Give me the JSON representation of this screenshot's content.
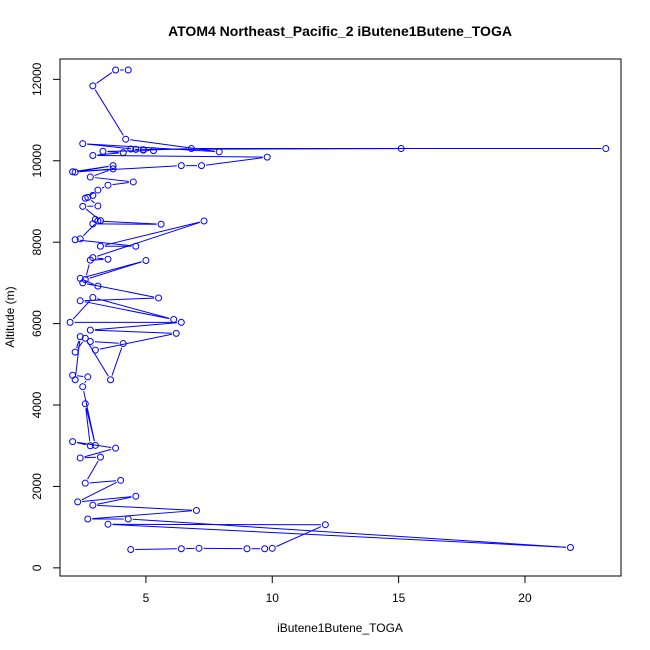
{
  "chart_data": {
    "type": "line",
    "title": "ATOM4 Northeast_Pacific_2 iButene1Butene_TOGA",
    "xlabel": "iButene1Butene_TOGA",
    "ylabel": "Altitude (m)",
    "xlim": [
      1.6,
      23.8
    ],
    "ylim": [
      -200,
      12500
    ],
    "xticks": [
      5,
      10,
      15,
      20
    ],
    "yticks": [
      0,
      2000,
      4000,
      6000,
      8000,
      10000,
      12000
    ],
    "grid": false,
    "markers": "open-circle",
    "colors": {
      "series": "#0000ff",
      "axes": "#000000"
    },
    "series": [
      {
        "values": [
          [
            4.4,
            450
          ],
          [
            6.4,
            470
          ],
          [
            7.1,
            480
          ],
          [
            9.0,
            470
          ],
          [
            9.7,
            470
          ],
          [
            10.0,
            480
          ],
          [
            12.1,
            1060
          ],
          [
            3.5,
            1070
          ],
          [
            21.8,
            500
          ],
          [
            4.3,
            1200
          ],
          [
            2.7,
            1200
          ],
          [
            7.0,
            1410
          ],
          [
            2.9,
            1540
          ],
          [
            4.6,
            1760
          ],
          [
            2.3,
            1620
          ],
          [
            4.0,
            2150
          ],
          [
            2.6,
            2080
          ],
          [
            3.2,
            2720
          ],
          [
            2.4,
            2700
          ],
          [
            3.8,
            2940
          ],
          [
            2.1,
            3100
          ],
          [
            2.8,
            3000
          ],
          [
            2.6,
            4030
          ],
          [
            3.0,
            3010
          ],
          [
            2.5,
            4450
          ],
          [
            2.7,
            4690
          ],
          [
            2.1,
            4730
          ],
          [
            2.2,
            4620
          ],
          [
            2.4,
            5680
          ],
          [
            2.2,
            5300
          ],
          [
            2.6,
            5640
          ],
          [
            3.6,
            4620
          ],
          [
            4.1,
            5510
          ],
          [
            2.8,
            5560
          ],
          [
            3.0,
            5350
          ],
          [
            6.2,
            5760
          ],
          [
            2.8,
            5840
          ],
          [
            6.4,
            6030
          ],
          [
            2.0,
            6030
          ],
          [
            2.9,
            6640
          ],
          [
            6.1,
            6100
          ],
          [
            2.4,
            6560
          ],
          [
            5.5,
            6630
          ],
          [
            2.5,
            7000
          ],
          [
            3.1,
            6920
          ],
          [
            2.4,
            7110
          ],
          [
            5.0,
            7550
          ],
          [
            2.6,
            7080
          ],
          [
            2.8,
            7560
          ],
          [
            3.5,
            7580
          ],
          [
            2.9,
            7620
          ],
          [
            7.3,
            8520
          ],
          [
            3.2,
            7900
          ],
          [
            4.6,
            7900
          ],
          [
            2.2,
            8060
          ],
          [
            2.4,
            8080
          ],
          [
            3.1,
            8520
          ],
          [
            5.6,
            8440
          ],
          [
            2.9,
            8450
          ],
          [
            3.0,
            8560
          ],
          [
            3.2,
            8530
          ],
          [
            2.5,
            8880
          ],
          [
            3.1,
            8890
          ],
          [
            2.7,
            9100
          ],
          [
            2.9,
            9150
          ],
          [
            2.6,
            9080
          ],
          [
            3.1,
            9280
          ],
          [
            3.5,
            9400
          ],
          [
            4.5,
            9480
          ],
          [
            2.8,
            9600
          ],
          [
            3.7,
            9800
          ],
          [
            2.2,
            9720
          ],
          [
            3.7,
            9880
          ],
          [
            2.1,
            9730
          ],
          [
            6.4,
            9880
          ],
          [
            7.2,
            9880
          ],
          [
            9.8,
            10090
          ],
          [
            2.9,
            10130
          ],
          [
            4.1,
            10200
          ],
          [
            3.3,
            10230
          ],
          [
            5.3,
            10250
          ],
          [
            4.9,
            10270
          ],
          [
            4.4,
            10290
          ],
          [
            4.9,
            10260
          ],
          [
            6.8,
            10300
          ],
          [
            23.2,
            10300
          ],
          [
            15.1,
            10300
          ],
          [
            4.6,
            10280
          ],
          [
            2.5,
            10420
          ],
          [
            7.9,
            10220
          ],
          [
            4.2,
            10530
          ],
          [
            2.9,
            11840
          ],
          [
            3.8,
            12230
          ],
          [
            4.3,
            12230
          ]
        ]
      }
    ]
  }
}
